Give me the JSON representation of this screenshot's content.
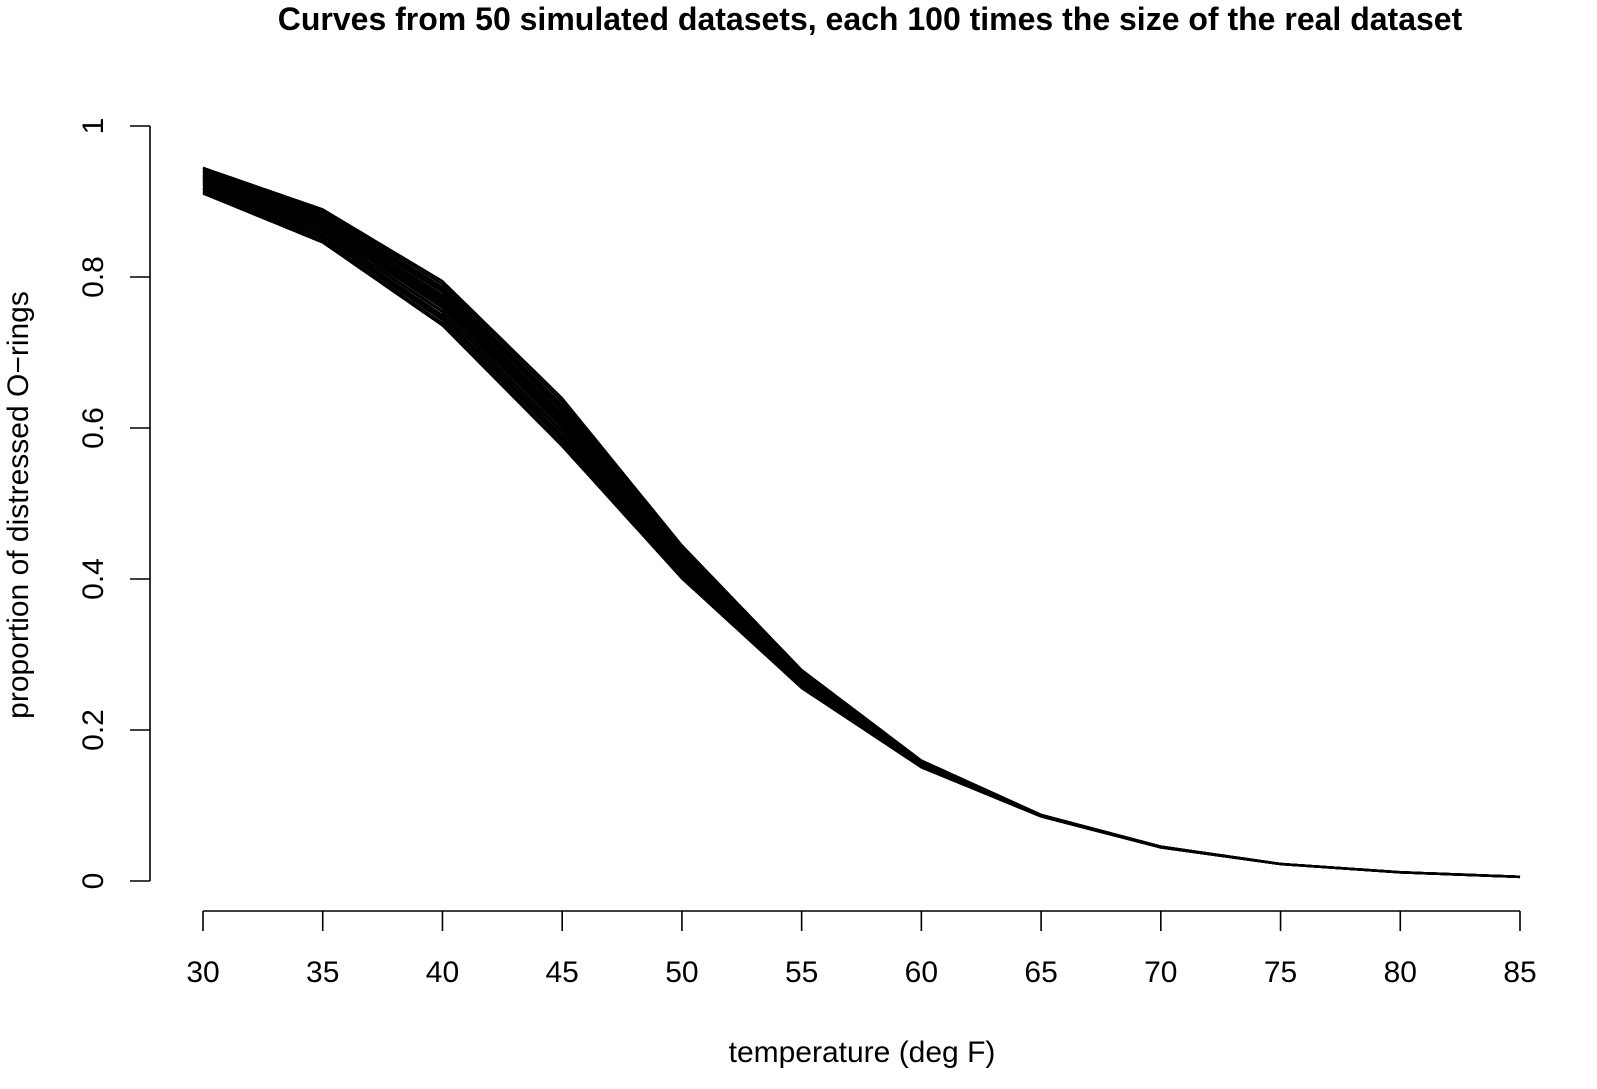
{
  "chart_data": {
    "type": "line",
    "title": "Curves from 50 simulated datasets, each 100 times the size of the real dataset",
    "xlabel": "temperature (deg F)",
    "ylabel": "proportion of distressed O−rings",
    "xlim": [
      30,
      85
    ],
    "ylim": [
      0,
      1
    ],
    "x_ticks": [
      "30",
      "35",
      "40",
      "45",
      "50",
      "55",
      "60",
      "65",
      "70",
      "75",
      "80",
      "85"
    ],
    "y_ticks": [
      "0",
      "0.2",
      "0.4",
      "0.6",
      "0.8",
      "1"
    ],
    "curve_family": {
      "count": 50,
      "model": "logistic",
      "color": "#000000",
      "envelope": {
        "x": [
          30,
          35,
          40,
          45,
          50,
          55,
          60,
          65,
          70,
          75,
          80,
          85
        ],
        "y_low": [
          0.91,
          0.845,
          0.735,
          0.575,
          0.4,
          0.255,
          0.15,
          0.085,
          0.044,
          0.022,
          0.011,
          0.005
        ],
        "y_high": [
          0.945,
          0.89,
          0.795,
          0.64,
          0.445,
          0.28,
          0.16,
          0.088,
          0.046,
          0.023,
          0.012,
          0.006
        ]
      }
    },
    "grid": false,
    "legend": "none"
  }
}
